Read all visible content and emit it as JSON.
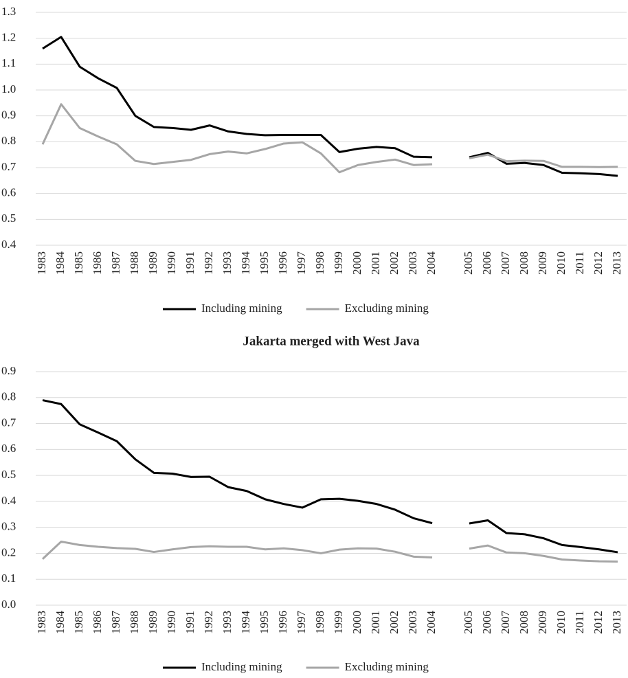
{
  "chart_data": [
    {
      "type": "line",
      "categories": [
        "1983",
        "1984",
        "1985",
        "1986",
        "1987",
        "1988",
        "1989",
        "1990",
        "1991",
        "1992",
        "1993",
        "1994",
        "1995",
        "1996",
        "1997",
        "1998",
        "1999",
        "2000",
        "2001",
        "2002",
        "2003",
        "2004",
        null,
        "2005",
        "2006",
        "2007",
        "2008",
        "2009",
        "2010",
        "2011",
        "2012",
        "2013"
      ],
      "series": [
        {
          "name": "Including mining",
          "color": "#000000",
          "values": [
            1.16,
            1.205,
            1.09,
            1.045,
            1.008,
            0.9,
            0.857,
            0.853,
            0.846,
            0.863,
            0.84,
            0.83,
            0.825,
            0.826,
            0.826,
            0.826,
            0.76,
            0.773,
            0.78,
            0.775,
            0.742,
            0.74,
            null,
            0.74,
            0.757,
            0.715,
            0.718,
            0.71,
            0.68,
            0.678,
            0.675,
            0.668
          ]
        },
        {
          "name": "Excluding mining",
          "color": "#a6a6a6",
          "values": [
            0.79,
            0.945,
            0.853,
            0.82,
            0.79,
            0.726,
            0.714,
            0.722,
            0.73,
            0.752,
            0.762,
            0.755,
            0.772,
            0.793,
            0.798,
            0.755,
            0.682,
            0.71,
            0.722,
            0.731,
            0.71,
            0.713,
            null,
            0.736,
            0.75,
            0.725,
            0.727,
            0.726,
            0.703,
            0.703,
            0.702,
            0.703
          ]
        }
      ],
      "ylim": [
        0.4,
        1.3
      ],
      "yticks": [
        0.4,
        0.5,
        0.6,
        0.7,
        0.8,
        0.9,
        {
          "value": 1,
          "label": "1.0"
        },
        1.1,
        1.2,
        1.3
      ],
      "grid": true,
      "legend": "bottom"
    },
    {
      "type": "line",
      "title": "Jakarta merged with West Java",
      "categories": [
        "1983",
        "1984",
        "1985",
        "1986",
        "1987",
        "1988",
        "1989",
        "1990",
        "1991",
        "1992",
        "1993",
        "1994",
        "1995",
        "1996",
        "1997",
        "1998",
        "1999",
        "2000",
        "2001",
        "2002",
        "2003",
        "2004",
        null,
        "2005",
        "2006",
        "2007",
        "2008",
        "2009",
        "2010",
        "2011",
        "2012",
        "2013"
      ],
      "series": [
        {
          "name": "Including mining",
          "color": "#000000",
          "values": [
            0.79,
            0.775,
            0.697,
            0.665,
            0.632,
            0.562,
            0.51,
            0.507,
            0.494,
            0.495,
            0.455,
            0.44,
            0.408,
            0.39,
            0.376,
            0.408,
            0.41,
            0.402,
            0.39,
            0.368,
            0.335,
            0.316,
            null,
            0.315,
            0.327,
            0.278,
            0.273,
            0.258,
            0.232,
            0.224,
            0.215,
            0.204
          ]
        },
        {
          "name": "Excluding mining",
          "color": "#a6a6a6",
          "values": [
            0.178,
            0.245,
            0.232,
            0.225,
            0.22,
            0.217,
            0.205,
            0.215,
            0.224,
            0.227,
            0.225,
            0.225,
            0.215,
            0.219,
            0.212,
            0.2,
            0.214,
            0.219,
            0.218,
            0.206,
            0.187,
            0.184,
            null,
            0.218,
            0.23,
            0.203,
            0.2,
            0.19,
            0.176,
            0.172,
            0.169,
            0.168
          ]
        }
      ],
      "ylim": [
        0,
        0.9
      ],
      "yticks": [
        {
          "value": 0,
          "label": "0.0"
        },
        0.1,
        0.2,
        0.3,
        0.4,
        0.5,
        0.6,
        0.7,
        0.8,
        0.9
      ],
      "grid": true,
      "legend": "bottom"
    }
  ]
}
